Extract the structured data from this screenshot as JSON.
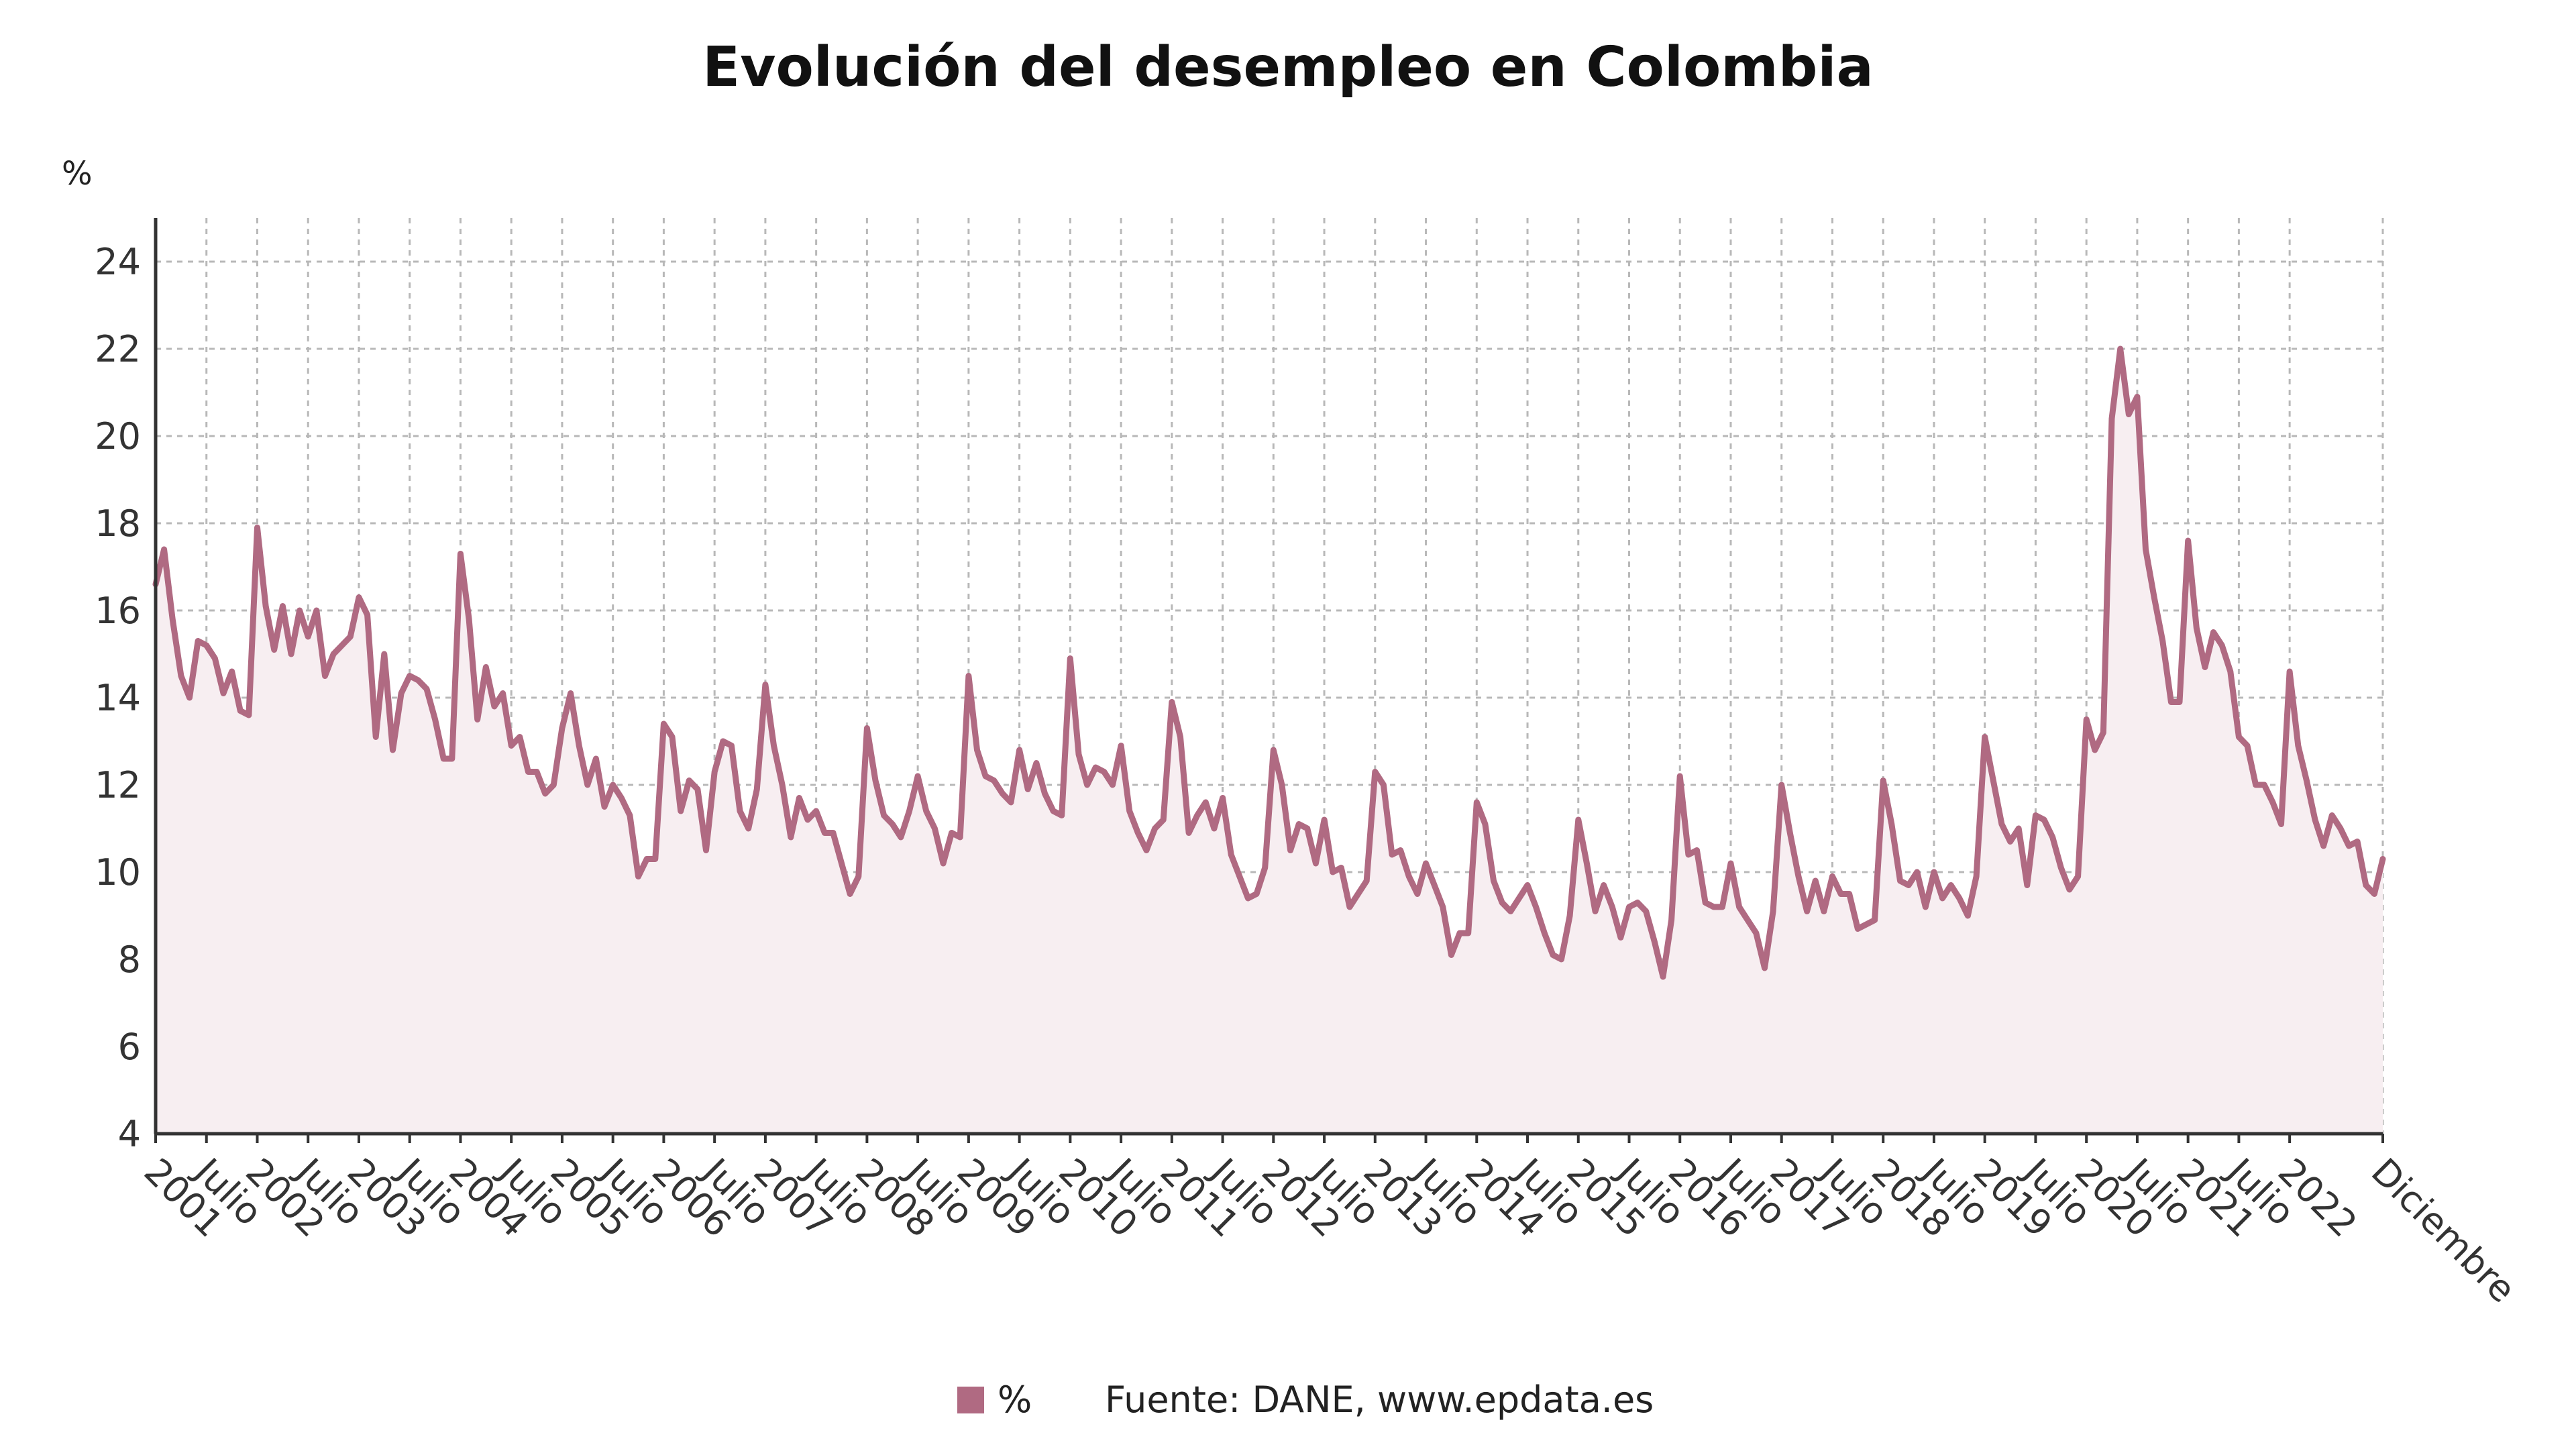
{
  "chart_data": {
    "type": "line",
    "title": "Evolución del desempleo en Colombia",
    "ylabel": "%",
    "xlabel": "",
    "ylim": [
      4,
      25
    ],
    "yticks": [
      4,
      6,
      8,
      10,
      12,
      14,
      16,
      18,
      20,
      22,
      24
    ],
    "grid": true,
    "legend_position": "bottom",
    "xticks": [
      "2001",
      "Julio",
      "2002",
      "Julio",
      "2003",
      "Julio",
      "2004",
      "Julio",
      "2005",
      "Julio",
      "2006",
      "Julio",
      "2007",
      "Julio",
      "2008",
      "Julio",
      "2009",
      "Julio",
      "2010",
      "Julio",
      "2011",
      "Julio",
      "2012",
      "Julio",
      "2013",
      "Julio",
      "2014",
      "Julio",
      "2015",
      "Julio",
      "2016",
      "Julio",
      "2017",
      "Julio",
      "2018",
      "Julio",
      "2019",
      "Julio",
      "2020",
      "Julio",
      "2021",
      "Julio",
      "2022",
      "Diciembre"
    ],
    "x_start": "2001-01",
    "x_end": "2022-12",
    "series": [
      {
        "name": "%",
        "color": "#b06a82",
        "values": [
          16.6,
          17.4,
          15.8,
          14.5,
          14.0,
          15.3,
          15.2,
          14.9,
          14.1,
          14.6,
          13.7,
          13.6,
          17.9,
          16.1,
          15.1,
          16.1,
          15.0,
          16.0,
          15.4,
          16.0,
          14.5,
          15.0,
          15.2,
          15.4,
          16.3,
          15.9,
          13.1,
          15.0,
          12.8,
          14.1,
          14.5,
          14.4,
          14.2,
          13.5,
          12.6,
          12.6,
          17.3,
          15.8,
          13.5,
          14.7,
          13.8,
          14.1,
          12.9,
          13.1,
          12.3,
          12.3,
          11.8,
          12.0,
          13.3,
          14.1,
          12.9,
          12.0,
          12.6,
          11.5,
          12.0,
          11.7,
          11.3,
          9.9,
          10.3,
          10.3,
          13.4,
          13.1,
          11.4,
          12.1,
          11.9,
          10.5,
          12.3,
          13.0,
          12.9,
          11.4,
          11.0,
          11.9,
          14.3,
          12.9,
          12.0,
          10.8,
          11.7,
          11.2,
          11.4,
          10.9,
          10.9,
          10.2,
          9.5,
          9.9,
          13.3,
          12.1,
          11.3,
          11.1,
          10.8,
          11.4,
          12.2,
          11.4,
          11.0,
          10.2,
          10.9,
          10.8,
          14.5,
          12.8,
          12.2,
          12.1,
          11.8,
          11.6,
          12.8,
          11.9,
          12.5,
          11.8,
          11.4,
          11.3,
          14.9,
          12.7,
          12.0,
          12.4,
          12.3,
          12.0,
          12.9,
          11.4,
          10.9,
          10.5,
          11.0,
          11.2,
          13.9,
          13.1,
          10.9,
          11.3,
          11.6,
          11.0,
          11.7,
          10.4,
          9.9,
          9.4,
          9.5,
          10.1,
          12.8,
          12.0,
          10.5,
          11.1,
          11.0,
          10.2,
          11.2,
          10.0,
          10.1,
          9.2,
          9.5,
          9.8,
          12.3,
          12.0,
          10.4,
          10.5,
          9.9,
          9.5,
          10.2,
          9.7,
          9.2,
          8.1,
          8.6,
          8.6,
          11.6,
          11.1,
          9.8,
          9.3,
          9.1,
          9.4,
          9.7,
          9.2,
          8.6,
          8.1,
          8.0,
          9.0,
          11.2,
          10.2,
          9.1,
          9.7,
          9.2,
          8.5,
          9.2,
          9.3,
          9.1,
          8.4,
          7.6,
          8.9,
          12.2,
          10.4,
          10.5,
          9.3,
          9.2,
          9.2,
          10.2,
          9.2,
          8.9,
          8.6,
          7.8,
          9.1,
          12.0,
          10.9,
          9.9,
          9.1,
          9.8,
          9.1,
          9.9,
          9.5,
          9.5,
          8.7,
          8.8,
          8.9,
          12.1,
          11.1,
          9.8,
          9.7,
          10.0,
          9.2,
          10.0,
          9.4,
          9.7,
          9.4,
          9.0,
          9.9,
          13.1,
          12.1,
          11.1,
          10.7,
          11.0,
          9.7,
          11.3,
          11.2,
          10.8,
          10.1,
          9.6,
          9.9,
          13.5,
          12.8,
          13.2,
          20.4,
          22.0,
          20.5,
          20.9,
          17.4,
          16.3,
          15.3,
          13.9,
          13.9,
          17.6,
          15.6,
          14.7,
          15.5,
          15.2,
          14.6,
          13.1,
          12.9,
          12.0,
          12.0,
          11.6,
          11.1,
          14.6,
          12.9,
          12.1,
          11.2,
          10.6,
          11.3,
          11.0,
          10.6,
          10.7,
          9.7,
          9.5,
          10.3
        ]
      }
    ]
  },
  "legend": {
    "label": "%"
  },
  "source": "Fuente: DANE, www.epdata.es"
}
